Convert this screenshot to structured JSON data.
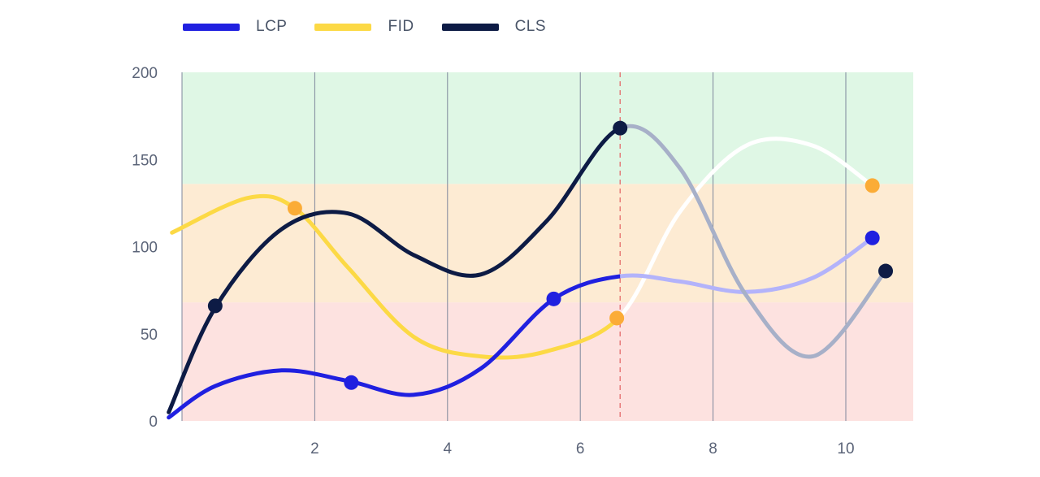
{
  "chart_data": {
    "type": "line",
    "x_ticks": [
      2,
      4,
      6,
      8,
      10
    ],
    "y_ticks": [
      0,
      50,
      100,
      150,
      200
    ],
    "xlim": [
      0,
      11
    ],
    "ylim": [
      0,
      200
    ],
    "grid": "vertical",
    "legend": "top-left",
    "bands": [
      {
        "from": 0,
        "to": 68,
        "color": "#fde2e0"
      },
      {
        "from": 68,
        "to": 136,
        "color": "#fdebd3"
      },
      {
        "from": 136,
        "to": 200,
        "color": "#dff7e5"
      }
    ],
    "marker_line_x": 6.6,
    "marker_line_color": "#e46b6b",
    "series": [
      {
        "name": "LCP",
        "color": "#2020e0",
        "projected_color": "#b3b3fa",
        "marker_color": "#2020e0",
        "curve": [
          [
            -0.2,
            2
          ],
          [
            0.5,
            20
          ],
          [
            1.5,
            29
          ],
          [
            2.5,
            23
          ],
          [
            3.5,
            15
          ],
          [
            4.5,
            30
          ],
          [
            5.6,
            70
          ],
          [
            6.6,
            83
          ],
          [
            7.5,
            80
          ],
          [
            8.5,
            74
          ],
          [
            9.5,
            82
          ],
          [
            10.4,
            105
          ]
        ],
        "points": [
          [
            2.55,
            22
          ],
          [
            5.6,
            70
          ],
          [
            10.4,
            105
          ]
        ]
      },
      {
        "name": "FID",
        "color": "#fcd945",
        "projected_color": "#ffffff",
        "marker_color": "#fbac37",
        "curve": [
          [
            -0.15,
            108
          ],
          [
            1.0,
            128
          ],
          [
            1.7,
            122
          ],
          [
            2.5,
            88
          ],
          [
            3.5,
            48
          ],
          [
            4.5,
            37
          ],
          [
            5.5,
            40
          ],
          [
            6.6,
            60
          ],
          [
            7.5,
            120
          ],
          [
            8.5,
            158
          ],
          [
            9.5,
            158
          ],
          [
            10.4,
            135
          ]
        ],
        "points": [
          [
            1.7,
            122
          ],
          [
            6.55,
            59
          ],
          [
            10.4,
            135
          ]
        ]
      },
      {
        "name": "CLS",
        "color": "#0d1b45",
        "projected_color": "#a7b0c8",
        "marker_color": "#0d1b45",
        "curve": [
          [
            -0.2,
            5
          ],
          [
            0.5,
            65
          ],
          [
            1.5,
            110
          ],
          [
            2.5,
            119
          ],
          [
            3.5,
            95
          ],
          [
            4.5,
            84
          ],
          [
            5.5,
            115
          ],
          [
            6.6,
            168
          ],
          [
            7.5,
            145
          ],
          [
            8.5,
            72
          ],
          [
            9.5,
            37
          ],
          [
            10.6,
            86
          ]
        ],
        "points": [
          [
            0.5,
            66
          ],
          [
            6.6,
            168
          ],
          [
            10.6,
            86
          ]
        ]
      }
    ]
  }
}
